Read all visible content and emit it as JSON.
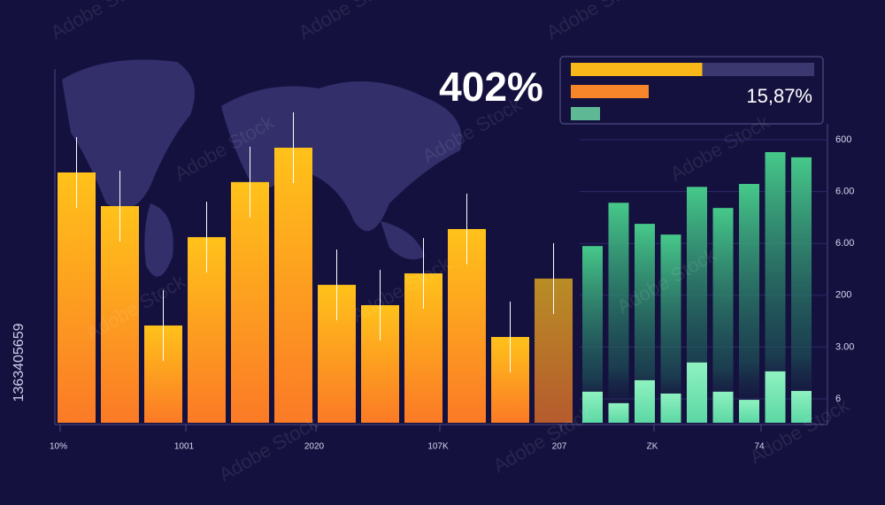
{
  "chart_data": {
    "type": "bar",
    "headline": "402%",
    "panel_value": "15,87%",
    "panel_bars": [
      {
        "color": "#f8b81a",
        "value": 54
      },
      {
        "color": "#f7862a",
        "value": 32
      },
      {
        "color": "#5fb894",
        "value": 12
      }
    ],
    "panel_max": 100,
    "x_labels": [
      "10%",
      "1001",
      "2020",
      "107K",
      "207",
      "ZK",
      "74"
    ],
    "y2_labels": [
      "600",
      "6.00",
      "6.00",
      "200",
      "3.00",
      "6"
    ],
    "ylim": [
      0,
      100
    ],
    "groups": [
      {
        "kind": "warm",
        "color": "#fdb515",
        "values": [
          67.7,
          58.6,
          26.3,
          50.2,
          65.1,
          74.4,
          37.3,
          31.8,
          40.4,
          52.4,
          23.2,
          39.0
        ]
      },
      {
        "kind": "cool-upper",
        "color": "#3fbf80",
        "values": [
          47.8,
          59.5,
          53.8,
          50.9,
          63.8,
          58.1,
          64.6,
          73.2,
          71.8
        ]
      },
      {
        "kind": "cool-lower",
        "color": "#7ee8b5",
        "values": [
          8.4,
          5.3,
          11.5,
          7.9,
          16.3,
          8.4,
          6.2,
          13.9,
          8.6
        ]
      }
    ],
    "watermark": "Adobe Stock",
    "stock_id": "1363405659"
  }
}
